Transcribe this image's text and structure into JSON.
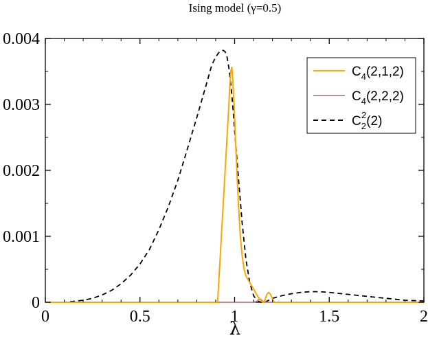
{
  "chart_data": {
    "type": "line",
    "title": "Ising model (γ=0.5)",
    "xlabel": "λ",
    "ylabel": "",
    "xlim": [
      0,
      2
    ],
    "ylim": [
      0,
      0.004
    ],
    "x_ticks": [
      "0",
      "0.5",
      "1",
      "1.5",
      "2"
    ],
    "y_ticks": [
      "0",
      "0.001",
      "0.002",
      "0.003",
      "0.004"
    ],
    "legend_position": "top-right",
    "grid": false,
    "series": [
      {
        "legend_main": "C",
        "legend_sub": "4",
        "legend_sup": "",
        "legend_rest": "(2,1,2)",
        "color": "#ffa500",
        "dash": "solid",
        "x": [
          0,
          0.9,
          0.905,
          0.91,
          0.92,
          0.93,
          0.94,
          0.95,
          0.96,
          0.97,
          0.975,
          0.98,
          0.985,
          0.99,
          0.995,
          1.0,
          1.01,
          1.02,
          1.03,
          1.04,
          1.05,
          1.06,
          1.08,
          1.1,
          1.12,
          1.14,
          1.15,
          1.16,
          1.17,
          1.18,
          1.19,
          1.2,
          1.21,
          2.0
        ],
        "y": [
          0,
          0,
          0,
          0,
          0.0005,
          0.001,
          0.0015,
          0.002,
          0.0025,
          0.003,
          0.0033,
          0.0035,
          0.00357,
          0.0034,
          0.0031,
          0.0028,
          0.0021,
          0.0015,
          0.001,
          0.0007,
          0.0005,
          0.0004,
          0.0003,
          0.0002,
          0.0001,
          2e-05,
          0,
          3e-05,
          0.00012,
          0.00015,
          0.00012,
          5e-05,
          0,
          0
        ]
      },
      {
        "legend_main": "C",
        "legend_sub": "4",
        "legend_sup": "",
        "legend_rest": "(2,2,2)",
        "color": "#bc8f8f",
        "dash": "solid",
        "x": [
          0,
          1.1,
          1.12,
          1.13,
          1.14,
          1.15,
          1.16,
          1.17,
          2.0
        ],
        "y": [
          0,
          0,
          2e-05,
          5e-05,
          4e-05,
          1e-05,
          0,
          0,
          0
        ]
      },
      {
        "legend_main": "C",
        "legend_sub": "2",
        "legend_sup": "2",
        "legend_rest": "(2)",
        "color": "#000000",
        "dash": "dashed",
        "x": [
          0,
          0.1,
          0.2,
          0.25,
          0.3,
          0.35,
          0.4,
          0.45,
          0.5,
          0.55,
          0.6,
          0.65,
          0.7,
          0.75,
          0.8,
          0.85,
          0.88,
          0.9,
          0.92,
          0.94,
          0.95,
          0.96,
          0.97,
          0.98,
          0.99,
          1.0,
          1.02,
          1.04,
          1.06,
          1.08,
          1.1,
          1.12,
          1.14,
          1.15,
          1.16,
          1.18,
          1.2,
          1.25,
          1.3,
          1.35,
          1.4,
          1.45,
          1.5,
          1.6,
          1.7,
          1.8,
          1.9,
          2.0
        ],
        "y": [
          0,
          0,
          3e-05,
          6e-05,
          0.00011,
          0.00018,
          0.00028,
          0.00041,
          0.00058,
          0.0008,
          0.0011,
          0.00145,
          0.00185,
          0.00232,
          0.0028,
          0.0033,
          0.0036,
          0.00372,
          0.0038,
          0.00382,
          0.0038,
          0.00372,
          0.00355,
          0.0033,
          0.003,
          0.0026,
          0.0019,
          0.0012,
          0.00065,
          0.0003,
          0.0001,
          2e-05,
          0,
          0,
          0,
          3e-05,
          6e-05,
          0.0001,
          0.00013,
          0.00015,
          0.00016,
          0.00016,
          0.00015,
          0.00012,
          9e-05,
          6e-05,
          3e-05,
          2e-05
        ]
      }
    ]
  }
}
